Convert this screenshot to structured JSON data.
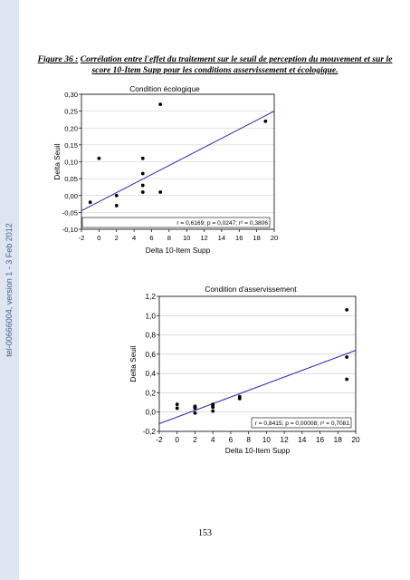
{
  "sidebar": {
    "text": "tel-00666004, version 1 - 3 Feb 2012"
  },
  "caption": {
    "label": "Figure 36 :",
    "text": "Corrélation entre l'effet du traitement sur le seuil de perception du mouvement et sur le score 10-Item Supp pour les conditions asservissement et écologique."
  },
  "page_number": "153",
  "chart_data": [
    {
      "type": "scatter",
      "title": "Condition écologique",
      "xlabel": "Delta 10-Item Supp",
      "ylabel": "Delta Seuil",
      "xlim": [
        -2,
        20
      ],
      "ylim": [
        -0.1,
        0.3
      ],
      "xticks": [
        "-2",
        "0",
        "2",
        "4",
        "6",
        "8",
        "10",
        "12",
        "14",
        "16",
        "18",
        "20"
      ],
      "yticks": [
        "-0,10",
        "-0,05",
        "0,00",
        "0,05",
        "0,10",
        "0,15",
        "0,20",
        "0,25",
        "0,30"
      ],
      "grid": true,
      "points": [
        {
          "x": -1,
          "y": -0.02
        },
        {
          "x": 0,
          "y": 0.11
        },
        {
          "x": 2,
          "y": 0.0
        },
        {
          "x": 2,
          "y": -0.03
        },
        {
          "x": 2,
          "y": -0.07
        },
        {
          "x": 2,
          "y": -0.075
        },
        {
          "x": 2,
          "y": -0.08
        },
        {
          "x": 5,
          "y": 0.11
        },
        {
          "x": 5,
          "y": 0.065
        },
        {
          "x": 5,
          "y": 0.03
        },
        {
          "x": 5,
          "y": 0.01
        },
        {
          "x": 7,
          "y": 0.27
        },
        {
          "x": 7,
          "y": 0.01
        },
        {
          "x": 19,
          "y": 0.22
        }
      ],
      "fit_line": {
        "x": [
          -2,
          20
        ],
        "y": [
          -0.045,
          0.25
        ]
      },
      "annotation": "r = 0,6169; p = 0,0247; r² = 0,3806"
    },
    {
      "type": "scatter",
      "title": "Condition d'asservissement",
      "xlabel": "Delta 10-Item Supp",
      "ylabel": "Delta Seuil",
      "xlim": [
        -2,
        20
      ],
      "ylim": [
        -0.2,
        1.2
      ],
      "xticks": [
        "-2",
        "0",
        "2",
        "4",
        "6",
        "8",
        "10",
        "12",
        "14",
        "16",
        "18",
        "20"
      ],
      "yticks": [
        "-0,2",
        "0,0",
        "0,2",
        "0,4",
        "0,6",
        "0,8",
        "1,0",
        "1,2"
      ],
      "grid": true,
      "points": [
        {
          "x": 0,
          "y": 0.08
        },
        {
          "x": 0,
          "y": 0.04
        },
        {
          "x": 2,
          "y": 0.06
        },
        {
          "x": 2,
          "y": 0.05
        },
        {
          "x": 2,
          "y": 0.04
        },
        {
          "x": 2,
          "y": -0.01
        },
        {
          "x": 4,
          "y": 0.08
        },
        {
          "x": 4,
          "y": 0.07
        },
        {
          "x": 4,
          "y": 0.06
        },
        {
          "x": 4,
          "y": 0.05
        },
        {
          "x": 4,
          "y": 0.01
        },
        {
          "x": 7,
          "y": 0.16
        },
        {
          "x": 7,
          "y": 0.15
        },
        {
          "x": 7,
          "y": 0.14
        },
        {
          "x": 19,
          "y": 1.06
        },
        {
          "x": 19,
          "y": 0.57
        },
        {
          "x": 19,
          "y": 0.34
        }
      ],
      "fit_line": {
        "x": [
          -2,
          20
        ],
        "y": [
          -0.12,
          0.64
        ]
      },
      "annotation": "r = 0,8415; p = 0,00008; r² = 0,7081"
    }
  ],
  "colors": {
    "fit_line": "#2b2ba8",
    "grid": "#c8c8c8",
    "sidebar_bg": "#dfe6f2",
    "sidebar_text": "#4a5f8f"
  }
}
